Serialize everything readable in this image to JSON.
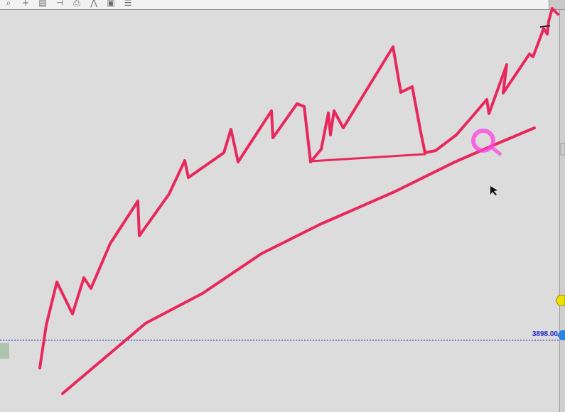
{
  "toolbar": {
    "tools": [
      {
        "name": "zoom-icon",
        "glyph": "⌕"
      },
      {
        "name": "crosshair-icon",
        "glyph": "+"
      },
      {
        "name": "data-window-icon",
        "glyph": "▤"
      },
      {
        "name": "period-icon",
        "glyph": "⊣"
      },
      {
        "name": "printer-icon",
        "glyph": "⎙"
      },
      {
        "name": "trend-icon",
        "glyph": "⋀"
      },
      {
        "name": "template-icon",
        "glyph": "▣"
      },
      {
        "name": "list-icon",
        "glyph": "☰"
      }
    ]
  },
  "chart": {
    "background": "#dcdcdc",
    "price_line_label": "3898.00",
    "price_line_color": "#2323c8",
    "drawing_color": "#e8285c",
    "highlight_color": "#ff40e0"
  }
}
